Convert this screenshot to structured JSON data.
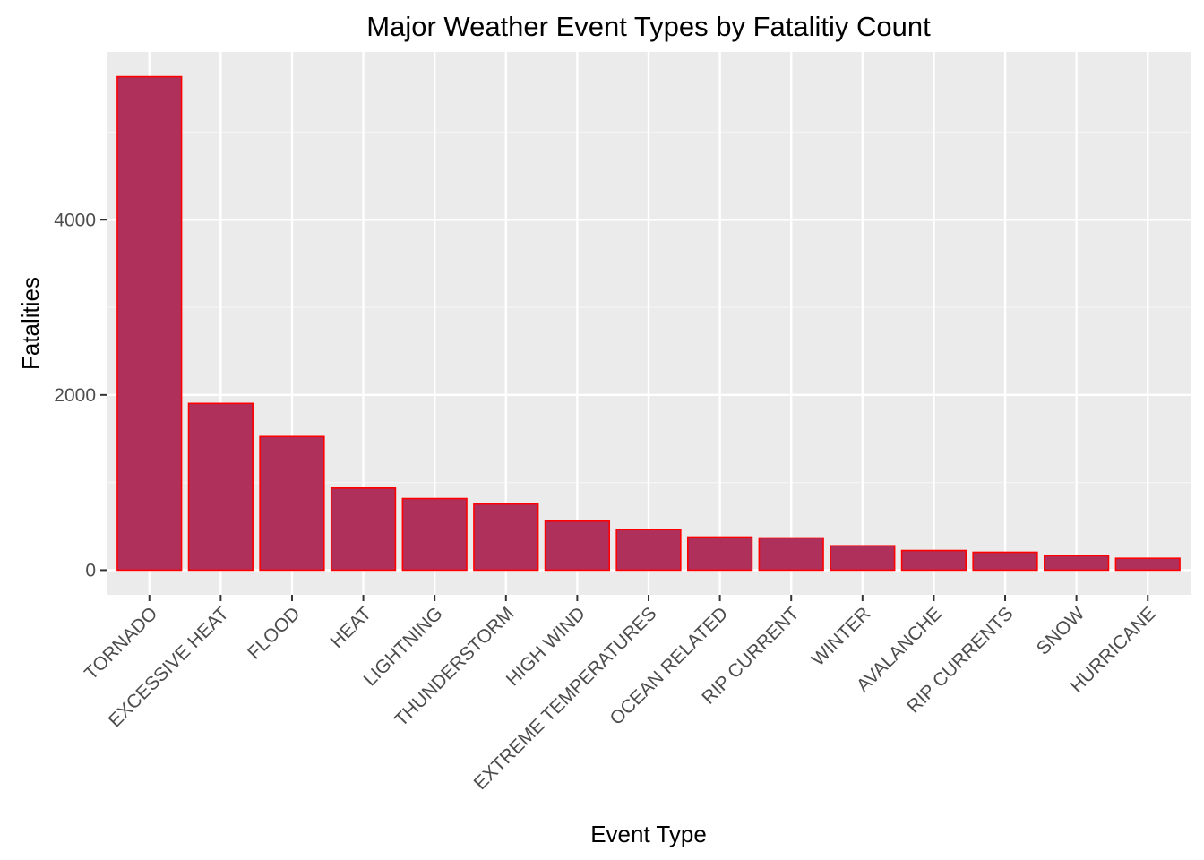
{
  "chart_data": {
    "type": "bar",
    "title": "Major Weather Event Types by Fatalitiy Count",
    "xlabel": "Event Type",
    "ylabel": "Fatalities",
    "categories": [
      "TORNADO",
      "EXCESSIVE HEAT",
      "FLOOD",
      "HEAT",
      "LIGHTNING",
      "THUNDERSTORM",
      "HIGH WIND",
      "EXTREME TEMPERATURES",
      "OCEAN RELATED",
      "RIP CURRENT",
      "WINTER",
      "AVALANCHE",
      "RIP CURRENTS",
      "SNOW",
      "HURRICANE"
    ],
    "values": [
      5633,
      1903,
      1525,
      937,
      817,
      755,
      559,
      462,
      378,
      368,
      278,
      224,
      204,
      164,
      135
    ],
    "y_ticks": [
      0,
      2000,
      4000
    ],
    "y_tick_labels": [
      "0",
      "2000",
      "4000"
    ],
    "ylim": [
      -282,
      5915
    ],
    "grid": true,
    "colors": {
      "bar_fill": "#b0305c",
      "bar_stroke": "#ff0000",
      "panel_background": "#ebebeb",
      "grid_major": "#ffffff",
      "grid_minor": "#f5f5f5"
    }
  }
}
